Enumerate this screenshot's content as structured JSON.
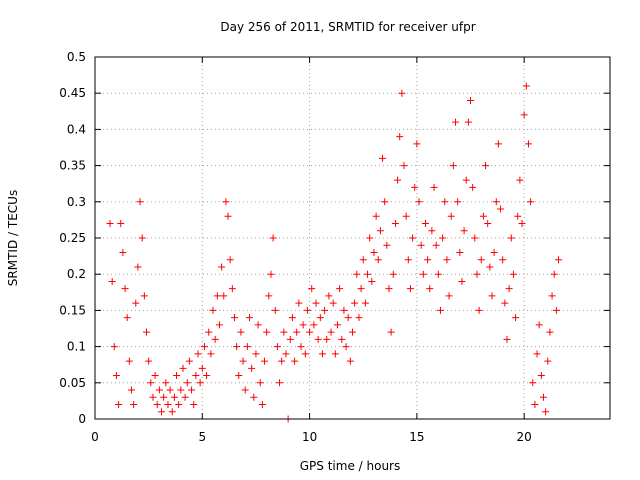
{
  "chart_data": {
    "type": "scatter",
    "title": "Day 256 of 2011, SRMTID for receiver ufpr",
    "xlabel": "GPS time / hours",
    "ylabel": "SRMTID / TECUs",
    "xlim": [
      0,
      24
    ],
    "ylim": [
      0,
      0.5
    ],
    "grid": true,
    "marker": "+",
    "color": "#ff0000",
    "xticks": [
      0,
      5,
      10,
      15,
      20
    ],
    "xtick_labels": [
      "0",
      "5",
      "10",
      "15",
      "20"
    ],
    "yticks": [
      0,
      0.05,
      0.1,
      0.15,
      0.2,
      0.25,
      0.3,
      0.35,
      0.4,
      0.45,
      0.5
    ],
    "ytick_labels": [
      "0",
      "0.05",
      "0.1",
      "0.15",
      "0.2",
      "0.25",
      "0.3",
      "0.35",
      "0.4",
      "0.45",
      "0.5"
    ],
    "series": [
      {
        "name": "SRMTID",
        "points": [
          [
            0.7,
            0.27
          ],
          [
            0.8,
            0.19
          ],
          [
            0.9,
            0.1
          ],
          [
            1.0,
            0.06
          ],
          [
            1.1,
            0.02
          ],
          [
            1.2,
            0.27
          ],
          [
            1.3,
            0.23
          ],
          [
            1.4,
            0.18
          ],
          [
            1.5,
            0.14
          ],
          [
            1.6,
            0.08
          ],
          [
            1.7,
            0.04
          ],
          [
            1.8,
            0.02
          ],
          [
            1.9,
            0.16
          ],
          [
            2.0,
            0.21
          ],
          [
            2.1,
            0.3
          ],
          [
            2.2,
            0.25
          ],
          [
            2.3,
            0.17
          ],
          [
            2.4,
            0.12
          ],
          [
            2.5,
            0.08
          ],
          [
            2.6,
            0.05
          ],
          [
            2.7,
            0.03
          ],
          [
            2.8,
            0.06
          ],
          [
            2.9,
            0.02
          ],
          [
            3.0,
            0.04
          ],
          [
            3.1,
            0.01
          ],
          [
            3.2,
            0.03
          ],
          [
            3.3,
            0.05
          ],
          [
            3.4,
            0.02
          ],
          [
            3.5,
            0.04
          ],
          [
            3.6,
            0.01
          ],
          [
            3.7,
            0.03
          ],
          [
            3.8,
            0.06
          ],
          [
            3.9,
            0.02
          ],
          [
            4.0,
            0.04
          ],
          [
            4.1,
            0.07
          ],
          [
            4.2,
            0.03
          ],
          [
            4.3,
            0.05
          ],
          [
            4.4,
            0.08
          ],
          [
            4.5,
            0.04
          ],
          [
            4.6,
            0.02
          ],
          [
            4.7,
            0.06
          ],
          [
            4.8,
            0.09
          ],
          [
            4.9,
            0.05
          ],
          [
            5.0,
            0.07
          ],
          [
            5.1,
            0.1
          ],
          [
            5.2,
            0.06
          ],
          [
            5.3,
            0.12
          ],
          [
            5.4,
            0.09
          ],
          [
            5.5,
            0.15
          ],
          [
            5.6,
            0.11
          ],
          [
            5.7,
            0.17
          ],
          [
            5.8,
            0.13
          ],
          [
            5.9,
            0.21
          ],
          [
            6.0,
            0.17
          ],
          [
            6.1,
            0.3
          ],
          [
            6.2,
            0.28
          ],
          [
            6.3,
            0.22
          ],
          [
            6.4,
            0.18
          ],
          [
            6.5,
            0.14
          ],
          [
            6.6,
            0.1
          ],
          [
            6.7,
            0.06
          ],
          [
            6.8,
            0.12
          ],
          [
            6.9,
            0.08
          ],
          [
            7.0,
            0.04
          ],
          [
            7.1,
            0.1
          ],
          [
            7.2,
            0.14
          ],
          [
            7.3,
            0.07
          ],
          [
            7.4,
            0.03
          ],
          [
            7.5,
            0.09
          ],
          [
            7.6,
            0.13
          ],
          [
            7.7,
            0.05
          ],
          [
            7.8,
            0.02
          ],
          [
            7.9,
            0.08
          ],
          [
            8.0,
            0.12
          ],
          [
            8.1,
            0.17
          ],
          [
            8.2,
            0.2
          ],
          [
            8.3,
            0.25
          ],
          [
            8.4,
            0.15
          ],
          [
            8.5,
            0.1
          ],
          [
            8.6,
            0.05
          ],
          [
            8.7,
            0.08
          ],
          [
            8.8,
            0.12
          ],
          [
            8.9,
            0.09
          ],
          [
            9.0,
            0.0
          ],
          [
            9.1,
            0.11
          ],
          [
            9.2,
            0.14
          ],
          [
            9.3,
            0.08
          ],
          [
            9.4,
            0.12
          ],
          [
            9.5,
            0.16
          ],
          [
            9.6,
            0.1
          ],
          [
            9.7,
            0.13
          ],
          [
            9.8,
            0.09
          ],
          [
            9.9,
            0.15
          ],
          [
            10.0,
            0.12
          ],
          [
            10.1,
            0.18
          ],
          [
            10.2,
            0.13
          ],
          [
            10.3,
            0.16
          ],
          [
            10.4,
            0.11
          ],
          [
            10.5,
            0.14
          ],
          [
            10.6,
            0.09
          ],
          [
            10.7,
            0.15
          ],
          [
            10.8,
            0.11
          ],
          [
            10.9,
            0.17
          ],
          [
            11.0,
            0.12
          ],
          [
            11.1,
            0.16
          ],
          [
            11.2,
            0.09
          ],
          [
            11.3,
            0.13
          ],
          [
            11.4,
            0.18
          ],
          [
            11.5,
            0.11
          ],
          [
            11.6,
            0.15
          ],
          [
            11.7,
            0.1
          ],
          [
            11.8,
            0.14
          ],
          [
            11.9,
            0.08
          ],
          [
            12.0,
            0.12
          ],
          [
            12.1,
            0.16
          ],
          [
            12.2,
            0.2
          ],
          [
            12.3,
            0.14
          ],
          [
            12.4,
            0.18
          ],
          [
            12.5,
            0.22
          ],
          [
            12.6,
            0.16
          ],
          [
            12.7,
            0.2
          ],
          [
            12.8,
            0.25
          ],
          [
            12.9,
            0.19
          ],
          [
            13.0,
            0.23
          ],
          [
            13.1,
            0.28
          ],
          [
            13.2,
            0.22
          ],
          [
            13.3,
            0.26
          ],
          [
            13.4,
            0.36
          ],
          [
            13.5,
            0.3
          ],
          [
            13.6,
            0.24
          ],
          [
            13.7,
            0.18
          ],
          [
            13.8,
            0.12
          ],
          [
            13.9,
            0.2
          ],
          [
            14.0,
            0.27
          ],
          [
            14.1,
            0.33
          ],
          [
            14.2,
            0.39
          ],
          [
            14.3,
            0.45
          ],
          [
            14.4,
            0.35
          ],
          [
            14.5,
            0.28
          ],
          [
            14.6,
            0.22
          ],
          [
            14.7,
            0.18
          ],
          [
            14.8,
            0.25
          ],
          [
            14.9,
            0.32
          ],
          [
            15.0,
            0.38
          ],
          [
            15.1,
            0.3
          ],
          [
            15.2,
            0.24
          ],
          [
            15.3,
            0.2
          ],
          [
            15.4,
            0.27
          ],
          [
            15.5,
            0.22
          ],
          [
            15.6,
            0.18
          ],
          [
            15.7,
            0.26
          ],
          [
            15.8,
            0.32
          ],
          [
            15.9,
            0.24
          ],
          [
            16.0,
            0.2
          ],
          [
            16.1,
            0.15
          ],
          [
            16.2,
            0.25
          ],
          [
            16.3,
            0.3
          ],
          [
            16.4,
            0.22
          ],
          [
            16.5,
            0.17
          ],
          [
            16.6,
            0.28
          ],
          [
            16.7,
            0.35
          ],
          [
            16.8,
            0.41
          ],
          [
            16.9,
            0.3
          ],
          [
            17.0,
            0.23
          ],
          [
            17.1,
            0.19
          ],
          [
            17.2,
            0.26
          ],
          [
            17.3,
            0.33
          ],
          [
            17.4,
            0.41
          ],
          [
            17.5,
            0.44
          ],
          [
            17.6,
            0.32
          ],
          [
            17.7,
            0.25
          ],
          [
            17.8,
            0.2
          ],
          [
            17.9,
            0.15
          ],
          [
            18.0,
            0.22
          ],
          [
            18.1,
            0.28
          ],
          [
            18.2,
            0.35
          ],
          [
            18.3,
            0.27
          ],
          [
            18.4,
            0.21
          ],
          [
            18.5,
            0.17
          ],
          [
            18.6,
            0.23
          ],
          [
            18.7,
            0.3
          ],
          [
            18.8,
            0.38
          ],
          [
            18.9,
            0.29
          ],
          [
            19.0,
            0.22
          ],
          [
            19.1,
            0.16
          ],
          [
            19.2,
            0.11
          ],
          [
            19.3,
            0.18
          ],
          [
            19.4,
            0.25
          ],
          [
            19.5,
            0.2
          ],
          [
            19.6,
            0.14
          ],
          [
            19.7,
            0.28
          ],
          [
            19.8,
            0.33
          ],
          [
            19.9,
            0.27
          ],
          [
            20.0,
            0.42
          ],
          [
            20.1,
            0.46
          ],
          [
            20.2,
            0.38
          ],
          [
            20.3,
            0.3
          ],
          [
            20.4,
            0.05
          ],
          [
            20.5,
            0.02
          ],
          [
            20.6,
            0.09
          ],
          [
            20.7,
            0.13
          ],
          [
            20.8,
            0.06
          ],
          [
            20.9,
            0.03
          ],
          [
            21.0,
            0.01
          ],
          [
            21.1,
            0.08
          ],
          [
            21.2,
            0.12
          ],
          [
            21.3,
            0.17
          ],
          [
            21.4,
            0.2
          ],
          [
            21.5,
            0.15
          ],
          [
            21.6,
            0.22
          ]
        ]
      }
    ]
  }
}
